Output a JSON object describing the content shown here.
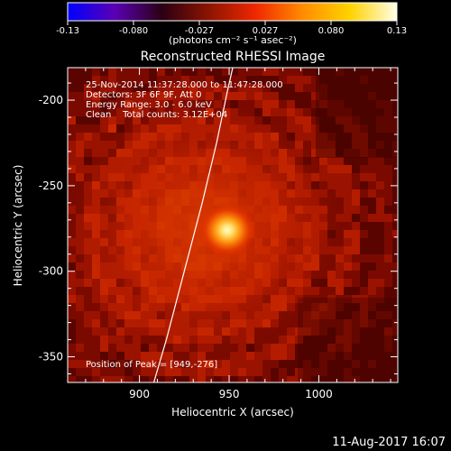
{
  "colorbar": {
    "ticks": [
      "-0.13",
      "-0.080",
      "-0.027",
      "0.027",
      "0.080",
      "0.13"
    ],
    "units": "(photons cm⁻² s⁻¹ asec⁻²)",
    "colormap": [
      "#0000ff",
      "#5a00b4",
      "#2a0014",
      "#8c1400",
      "#f02800",
      "#ff8c00",
      "#ffd200",
      "#ffffe6"
    ]
  },
  "chart_data": {
    "type": "heatmap",
    "title": "Reconstructed RHESSI Image",
    "xlabel": "Heliocentric X (arcsec)",
    "ylabel": "Heliocentric Y (arcsec)",
    "xlim": [
      860,
      1044
    ],
    "ylim": [
      -365,
      -181
    ],
    "xticks": [
      900,
      950,
      1000
    ],
    "yticks": [
      -200,
      -250,
      -300,
      -350
    ],
    "grid": false,
    "info_lines": [
      "25-Nov-2014 11:37:28.000 to 11:47:28.000",
      "Detectors: 3F 6F 9F, Att 0",
      "Energy Range: 3.0 - 6.0 keV",
      "Clean    Total counts: 3.12E+04"
    ],
    "peak_label": "Position of Peak = [949,-276]",
    "peak": {
      "x": 949,
      "y": -276,
      "value": 0.13
    },
    "limb_curve": [
      [
        908,
        -365
      ],
      [
        915,
        -340
      ],
      [
        925,
        -300
      ],
      [
        935,
        -260
      ],
      [
        943,
        -225
      ],
      [
        949,
        -195
      ],
      [
        952,
        -181
      ]
    ]
  },
  "footer": {
    "date": "11-Aug-2017 16:07"
  }
}
